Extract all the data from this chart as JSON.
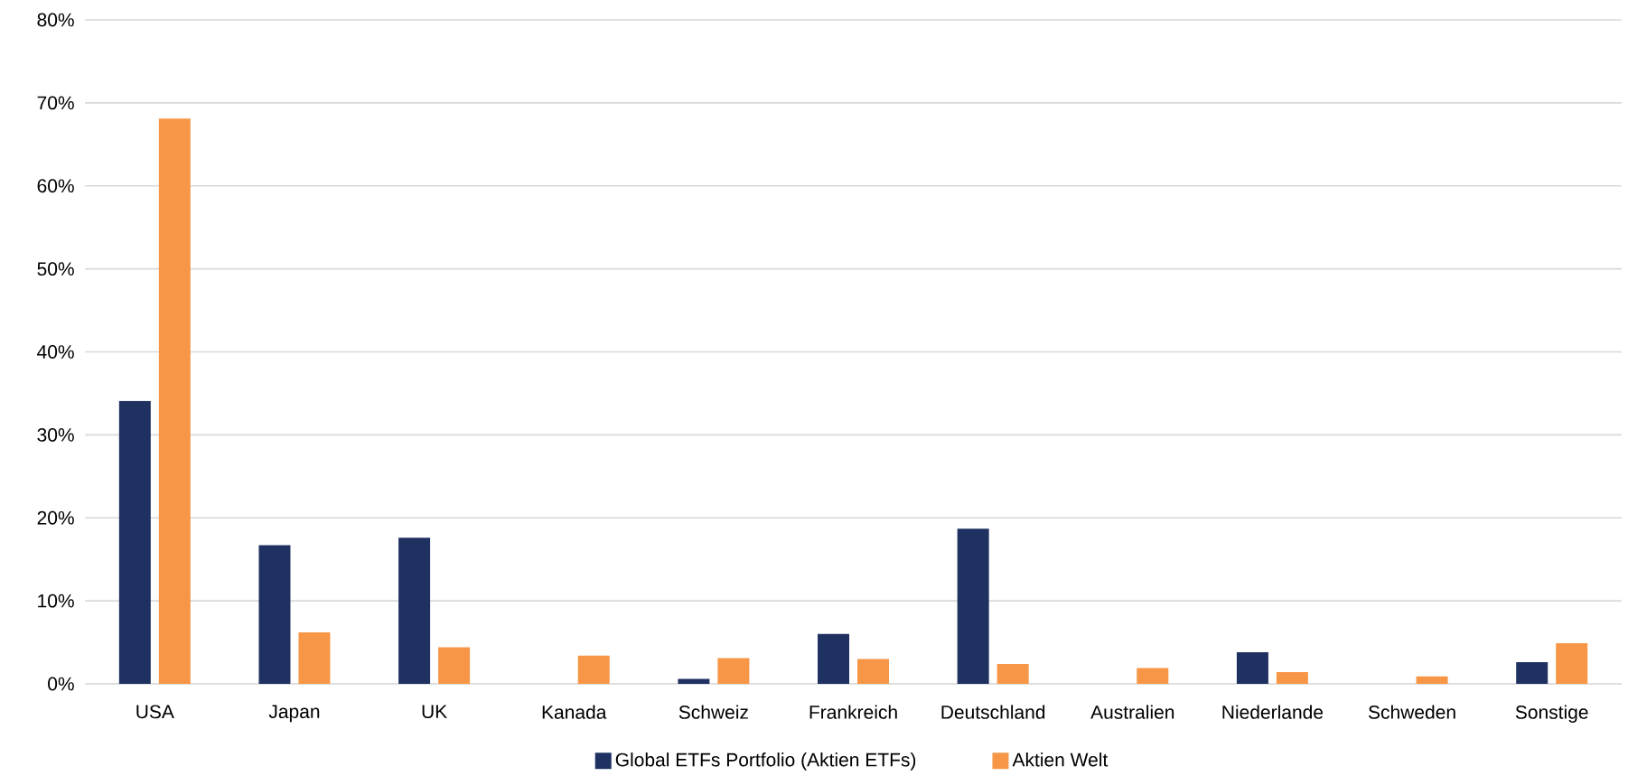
{
  "chart_data": {
    "type": "bar",
    "categories": [
      "USA",
      "Japan",
      "UK",
      "Kanada",
      "Schweiz",
      "Frankreich",
      "Deutschland",
      "Australien",
      "Niederlande",
      "Schweden",
      "Sonstige"
    ],
    "series": [
      {
        "name": "Global ETFs Portfolio (Aktien ETFs)",
        "color": "#1f3160",
        "values": [
          34.1,
          16.7,
          17.6,
          null,
          0.6,
          6.0,
          18.7,
          null,
          3.8,
          null,
          2.6
        ]
      },
      {
        "name": "Aktien Welt",
        "color": "#f79646",
        "values": [
          68.1,
          6.2,
          4.4,
          3.4,
          3.1,
          3.0,
          2.4,
          1.9,
          1.4,
          0.9,
          4.9
        ]
      }
    ],
    "ylim": [
      0,
      80
    ],
    "yticks": [
      {
        "value": 0,
        "label": "0%"
      },
      {
        "value": 10,
        "label": "10%"
      },
      {
        "value": 20,
        "label": "20%"
      },
      {
        "value": 30,
        "label": "30%"
      },
      {
        "value": 40,
        "label": "40%"
      },
      {
        "value": 50,
        "label": "50%"
      },
      {
        "value": 60,
        "label": "60%"
      },
      {
        "value": 70,
        "label": "70%"
      },
      {
        "value": 80,
        "label": "80%"
      }
    ],
    "grid": "y",
    "legend": "bottom"
  }
}
